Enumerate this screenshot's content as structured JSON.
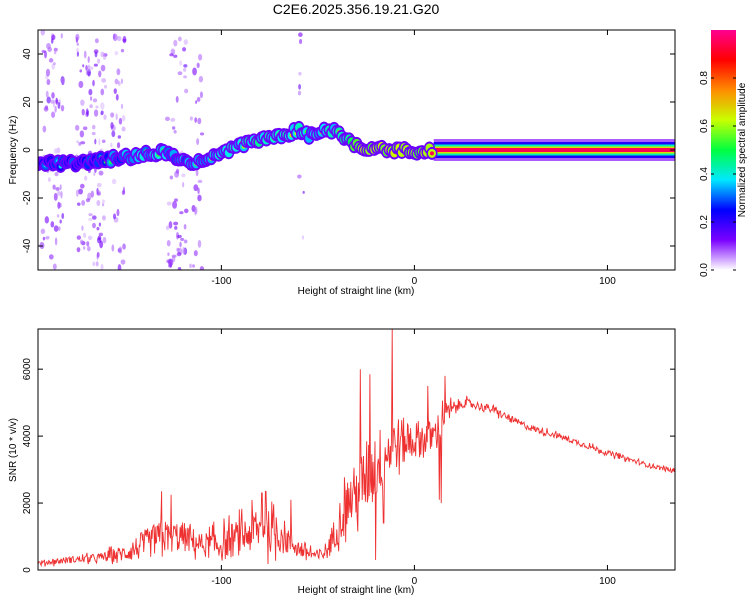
{
  "title": "C2E6.2025.356.19.21.G20",
  "chart_data": [
    {
      "type": "heatmap",
      "name": "spectrogram",
      "xlabel": "Height of straight line (km)",
      "ylabel": "Frequency (Hz)",
      "xlim": [
        -195,
        135
      ],
      "ylim": [
        -50,
        50
      ],
      "xticks": [
        -100,
        0,
        100
      ],
      "yticks": [
        -40,
        -20,
        0,
        20,
        40
      ],
      "colorbar": {
        "label": "Normalized spectral amplitude",
        "range": [
          0,
          1
        ],
        "ticks": [
          0.0,
          0.2,
          0.4,
          0.6,
          0.8
        ],
        "tick_labels": [
          "0.0",
          "0.2",
          "0.4",
          "0.6",
          "0.8"
        ],
        "colormap": [
          "#ffffff",
          "#7a00ff",
          "#0000ff",
          "#00e8ff",
          "#00ff40",
          "#c8ff00",
          "#ff8c00",
          "#ff0000",
          "#ff0090"
        ]
      },
      "ridge": {
        "x": [
          -195,
          -180,
          -170,
          -160,
          -150,
          -140,
          -130,
          -120,
          -110,
          -100,
          -90,
          -80,
          -70,
          -60,
          -55,
          -50,
          -45,
          -40,
          -35,
          -30,
          -25,
          -20,
          -10,
          -5,
          0,
          5,
          10,
          20,
          50,
          100,
          135
        ],
        "freq": [
          -5,
          -6,
          -5,
          -4,
          -3,
          -2,
          -1,
          -5,
          -5,
          -2,
          2,
          4,
          6,
          8,
          6,
          8,
          9,
          7,
          4,
          2,
          1,
          1,
          0,
          0,
          -1,
          -1,
          0,
          0,
          0,
          0,
          0
        ],
        "amplitude": [
          0.35,
          0.35,
          0.3,
          0.4,
          0.45,
          0.5,
          0.5,
          0.45,
          0.5,
          0.55,
          0.55,
          0.6,
          0.6,
          0.55,
          0.5,
          0.55,
          0.55,
          0.6,
          0.65,
          0.85,
          0.9,
          0.88,
          0.92,
          0.9,
          0.85,
          0.9,
          0.92,
          0.95,
          0.95,
          0.95,
          0.95
        ]
      }
    },
    {
      "type": "line",
      "name": "snr",
      "xlabel": "Height of straight line (km)",
      "ylabel": "SNR (10 * v/v)",
      "xlim": [
        -195,
        135
      ],
      "ylim": [
        0,
        7200
      ],
      "xticks": [
        -100,
        0,
        100
      ],
      "yticks": [
        0,
        2000,
        4000,
        6000
      ],
      "series": [
        {
          "name": "SNR",
          "color": "#ee3030",
          "x": [
            -195,
            -180,
            -165,
            -150,
            -140,
            -130,
            -120,
            -110,
            -100,
            -90,
            -80,
            -70,
            -60,
            -50,
            -45,
            -40,
            -35,
            -30,
            -25,
            -20,
            -15,
            -10,
            0,
            10,
            15,
            20,
            25,
            30,
            40,
            50,
            60,
            75,
            100,
            120,
            135
          ],
          "y": [
            200,
            300,
            350,
            500,
            750,
            1000,
            1000,
            750,
            750,
            1000,
            1200,
            1100,
            650,
            400,
            600,
            1300,
            2000,
            2300,
            2800,
            3100,
            3500,
            3800,
            3900,
            4000,
            4600,
            4800,
            5000,
            4950,
            4800,
            4500,
            4250,
            4000,
            3500,
            3150,
            2950
          ],
          "noise": [
            80,
            100,
            120,
            250,
            450,
            500,
            450,
            350,
            500,
            550,
            650,
            600,
            300,
            200,
            300,
            550,
            800,
            900,
            1100,
            1100,
            900,
            800,
            600,
            450,
            400,
            250,
            150,
            130,
            120,
            110,
            100,
            90,
            80,
            70,
            70
          ],
          "spikes": [
            {
              "x": -131,
              "y": 2350
            },
            {
              "x": -126,
              "y": 2250
            },
            {
              "x": -79,
              "y": 2300
            },
            {
              "x": -77,
              "y": 2350
            },
            {
              "x": -64,
              "y": 2100
            },
            {
              "x": -28,
              "y": 6000
            },
            {
              "x": -23,
              "y": 5850
            },
            {
              "x": -11.5,
              "y": 7200
            },
            {
              "x": 7,
              "y": 5500
            },
            {
              "x": 16,
              "y": 5800
            }
          ],
          "dips": [
            {
              "x": -20,
              "y": 300
            },
            {
              "x": -16,
              "y": 1400
            },
            {
              "x": 13,
              "y": 2100
            },
            {
              "x": 14,
              "y": 2000
            }
          ]
        }
      ]
    }
  ]
}
